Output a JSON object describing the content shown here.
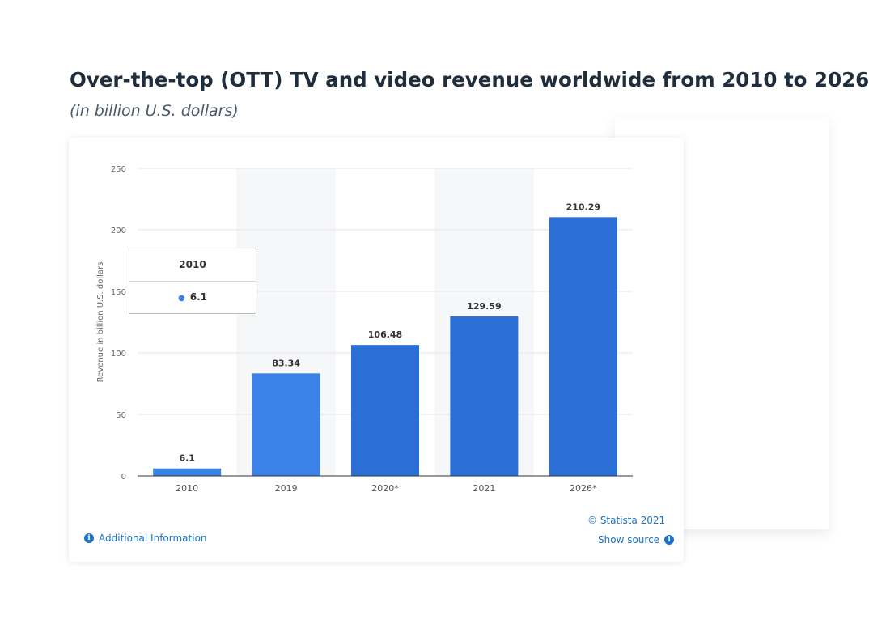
{
  "header": {
    "title": "Over-the-top (OTT) TV and video revenue worldwide from 2010 to 2026",
    "subtitle": "(in billion U.S. dollars)"
  },
  "tooltip": {
    "category": "2010",
    "value": "6.1"
  },
  "footer": {
    "additional_info": "Additional Information",
    "credit": "© Statista 2021",
    "show_source": "Show source"
  },
  "colors": {
    "bar_light": "#3b82e8",
    "bar_dark": "#2b6fd6",
    "highlight_band": "#f6f7f9",
    "link": "#1a73c7"
  },
  "icons": {
    "additional_info": "info-icon",
    "show_source": "info-icon"
  },
  "chart_data": {
    "type": "bar",
    "title": "Over-the-top (OTT) TV and video revenue worldwide from 2010 to 2026",
    "subtitle": "(in billion U.S. dollars)",
    "xlabel": "",
    "ylabel": "Revenue in billion U.S. dollars",
    "categories": [
      "2010",
      "2019",
      "2020*",
      "2021",
      "2026*"
    ],
    "values": [
      6.1,
      83.34,
      106.48,
      129.59,
      210.29
    ],
    "value_labels": [
      "6.1",
      "83.34",
      "106.48",
      "129.59",
      "210.29"
    ],
    "yticks": [
      0,
      50,
      100,
      150,
      200,
      250
    ],
    "ylim": [
      0,
      250
    ],
    "grid": true,
    "highlighted_bands": [
      "2019",
      "2021"
    ],
    "legend": "none"
  }
}
